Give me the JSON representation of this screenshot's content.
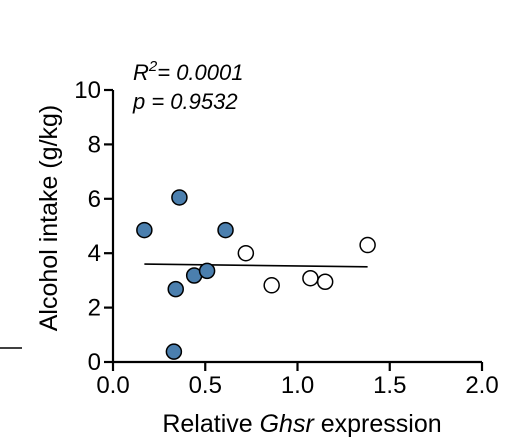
{
  "chart_data": {
    "type": "scatter",
    "xlabel_prefix": "Relative ",
    "xlabel_italic": "Ghsr",
    "xlabel_suffix": " expression",
    "ylabel": "Alcohol intake (g/kg)",
    "xlim": [
      0,
      2.0
    ],
    "ylim": [
      0,
      10
    ],
    "xticks": [
      {
        "value": 0.0,
        "label": "0.0"
      },
      {
        "value": 0.5,
        "label": "0.5"
      },
      {
        "value": 1.0,
        "label": "1.0"
      },
      {
        "value": 1.5,
        "label": "1.5"
      },
      {
        "value": 2.0,
        "label": "2.0"
      }
    ],
    "yticks": [
      {
        "value": 0,
        "label": "0"
      },
      {
        "value": 2,
        "label": "2"
      },
      {
        "value": 4,
        "label": "4"
      },
      {
        "value": 6,
        "label": "6"
      },
      {
        "value": 8,
        "label": "8"
      },
      {
        "value": 10,
        "label": "10"
      }
    ],
    "annotation": {
      "r_prefix": "R",
      "r_sup": "2",
      "r_value": "= 0.0001",
      "p_text": "p = 0.9532"
    },
    "fit_line": {
      "x": [
        0.17,
        1.38
      ],
      "y": [
        3.6,
        3.5
      ]
    },
    "series": [
      {
        "color": "#4b7fae",
        "points": [
          {
            "x": 0.17,
            "y": 4.85
          },
          {
            "x": 0.36,
            "y": 6.05
          },
          {
            "x": 0.61,
            "y": 4.85
          },
          {
            "x": 0.34,
            "y": 2.68
          },
          {
            "x": 0.44,
            "y": 3.18
          },
          {
            "x": 0.51,
            "y": 3.35
          },
          {
            "x": 0.33,
            "y": 0.38
          }
        ]
      },
      {
        "color": "#ffffff",
        "points": [
          {
            "x": 0.72,
            "y": 4.0
          },
          {
            "x": 0.86,
            "y": 2.82
          },
          {
            "x": 1.07,
            "y": 3.08
          },
          {
            "x": 1.15,
            "y": 2.95
          },
          {
            "x": 1.38,
            "y": 4.3
          }
        ]
      }
    ]
  }
}
